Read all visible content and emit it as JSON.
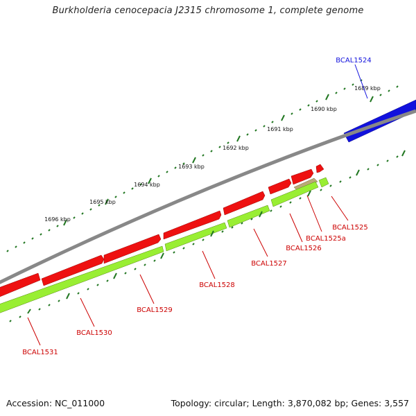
{
  "title": "Burkholderia cenocepacia J2315 chromosome 1, complete genome",
  "footer": {
    "accession": "Accession: NC_011000",
    "summary": "Topology: circular; Length: 3,870,082 bp; Genes: 3,557"
  },
  "colors": {
    "gene_forward": "#ee1111",
    "gene_reverse": "#99ee33",
    "highlight": "#1111dd",
    "backbone": "#888888",
    "ticks": "#227722",
    "label": "#cc0000",
    "pseudo": "#bbaa77"
  },
  "kbp_labels": [
    "1689 kbp",
    "1690 kbp",
    "1691 kbp",
    "1692 kbp",
    "1693 kbp",
    "1694 kbp",
    "1695 kbp",
    "1696 kbp"
  ],
  "gene_labels": [
    "BCAL1524",
    "BCAL1525",
    "BCAL1525a",
    "BCAL1526",
    "BCAL1527",
    "BCAL1528",
    "BCAL1529",
    "BCAL1530",
    "BCAL1531"
  ]
}
